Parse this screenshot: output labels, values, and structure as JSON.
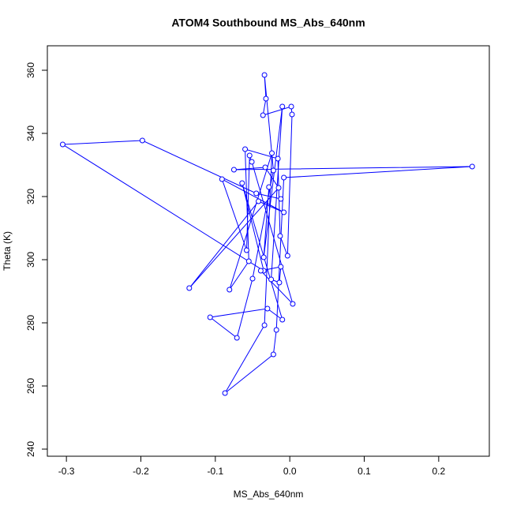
{
  "chart_data": {
    "type": "line",
    "title": "ATOM4 Southbound MS_Abs_640nm",
    "x_label": "MS_Abs_640nm",
    "y_label": "Theta (K)",
    "series": [
      {
        "color": "#0000ff",
        "x": [
          -0.012,
          -0.045,
          -0.198,
          -0.305,
          -0.035,
          -0.064,
          -0.01,
          -0.03,
          -0.107,
          -0.071,
          -0.05,
          -0.022,
          -0.034,
          -0.032,
          -0.036,
          0.002,
          0.003,
          -0.003,
          -0.013,
          -0.016,
          -0.06,
          -0.055,
          -0.081,
          -0.024,
          -0.034,
          -0.087,
          -0.022,
          -0.018,
          -0.008,
          0.245,
          -0.075,
          -0.033,
          -0.015,
          -0.135,
          -0.042,
          -0.008,
          -0.091,
          -0.058,
          -0.054,
          -0.051,
          0.004,
          -0.039,
          -0.012,
          -0.014,
          -0.025,
          -0.01,
          -0.035,
          -0.028
        ],
        "values": [
          319.25,
          321,
          337.75,
          336.5,
          296.5,
          324.25,
          281,
          284.5,
          281.75,
          275.25,
          294,
          328.25,
          358.5,
          351,
          345.75,
          348.5,
          346,
          301.25,
          307.5,
          332,
          335,
          299.5,
          290.5,
          333.75,
          279.25,
          257.75,
          270,
          277.75,
          326,
          329.5,
          328.5,
          329.25,
          322.75,
          291,
          318.5,
          315,
          325.5,
          303,
          333,
          331,
          286,
          296.5,
          297.75,
          292.75,
          293.75,
          348.5,
          300.75,
          323
        ]
      }
    ],
    "xlim": [
      -0.3256,
      0.268
    ],
    "ylim": [
      237.75,
      367.75
    ],
    "xticks": [
      -0.3,
      -0.2,
      -0.1,
      {
        "value": 0,
        "label": "0.0"
      },
      0.1,
      0.2
    ],
    "yticks": [
      240,
      260,
      280,
      300,
      320,
      340,
      360
    ]
  }
}
